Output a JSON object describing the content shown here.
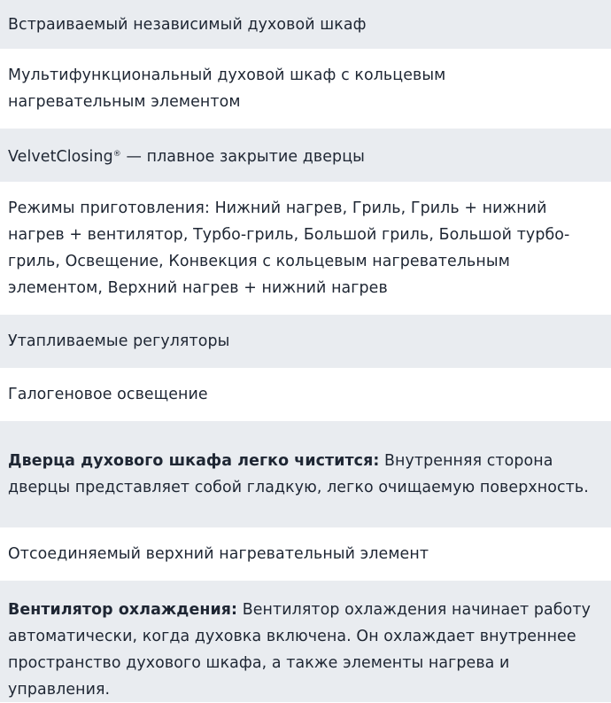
{
  "features": [
    {
      "bold": "",
      "text": "Встраиваемый независимый духовой шкаф"
    },
    {
      "bold": "",
      "text": "Мультифункциональный духовой шкаф с кольцевым нагревательным элементом"
    },
    {
      "bold": "",
      "brand": "VelvetClosing",
      "sup": "®",
      "text": " — плавное закрытие дверцы"
    },
    {
      "bold": "",
      "text": "Режимы приготовления: Нижний нагрев, Гриль, Гриль + нижний нагрев + вентилятор, Турбо-гриль, Большой гриль, Большой турбо-гриль, Освещение, Конвекция с кольцевым нагревательным элементом, Верхний нагрев + нижний нагрев"
    },
    {
      "bold": "",
      "text": "Утапливаемые регуляторы"
    },
    {
      "bold": "",
      "text": "Галогеновое освещение"
    },
    {
      "bold": "Дверца духового шкафа легко чистится:",
      "text": " Внутренняя сторона дверцы представляет собой гладкую, легко очищаемую поверхность."
    },
    {
      "bold": "",
      "text": "Отсоединяемый верхний нагревательный элемент"
    },
    {
      "bold": "Вентилятор охлаждения:",
      "text": " Вентилятор охлаждения начинает работу автоматически, когда духовка включена. Он охлаждает внутреннее пространство духового шкафа, а также элементы нагрева и управления."
    }
  ]
}
